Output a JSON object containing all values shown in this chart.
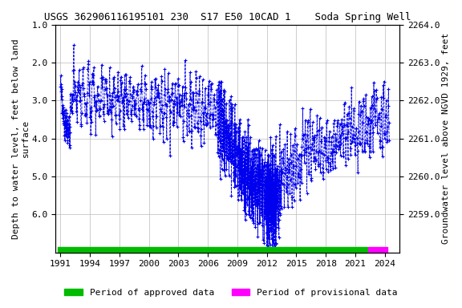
{
  "title": "USGS 362906116195101 230  S17 E50 10CAD 1    Soda Spring Well",
  "xlabel_years": [
    1991,
    1994,
    1997,
    2000,
    2003,
    2006,
    2009,
    2012,
    2015,
    2018,
    2021,
    2024
  ],
  "ylabel_left": "Depth to water level, feet below land\nsurface",
  "ylabel_right": "Groundwater level above NGVD 1929, feet",
  "ylim_left": [
    1.0,
    7.0
  ],
  "ylim_right": [
    2258.0,
    2264.0
  ],
  "xlim": [
    1990.5,
    2025.5
  ],
  "yticks_left": [
    1.0,
    2.0,
    3.0,
    4.0,
    5.0,
    6.0
  ],
  "yticks_right": [
    2259.0,
    2260.0,
    2261.0,
    2262.0,
    2263.0,
    2264.0
  ],
  "approved_start": 1990.7,
  "approved_end": 2022.3,
  "provisional_start": 2022.3,
  "provisional_end": 2024.3,
  "line_color": "#0000EE",
  "approved_color": "#00BB00",
  "provisional_color": "#FF00FF",
  "background_color": "#ffffff",
  "grid_color": "#bbbbbb",
  "title_fontsize": 9,
  "axis_fontsize": 8,
  "tick_fontsize": 8,
  "legend_fontsize": 8
}
